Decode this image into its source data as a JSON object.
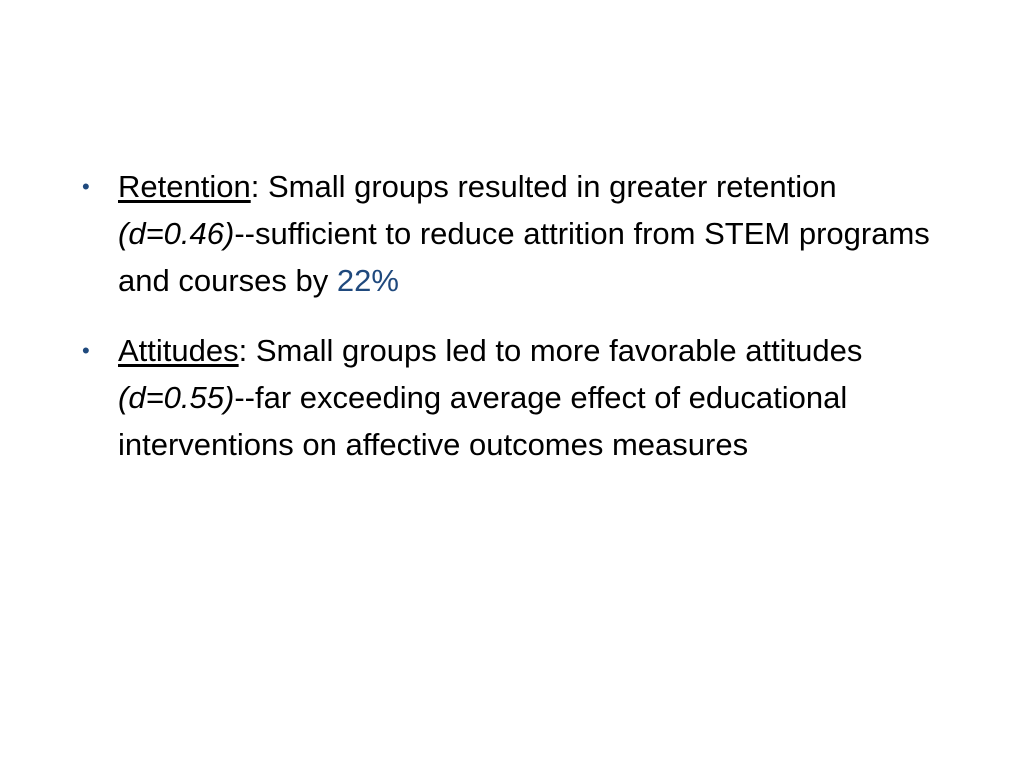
{
  "slide": {
    "accent_color": "#1f497d",
    "bullets": [
      {
        "bullet_glyph": "•",
        "term": "Retention",
        "colon": ":",
        "text_before_stat": " Small groups resulted in greater retention ",
        "stat": "(d=0.46)",
        "text_after_stat": "--sufficient to reduce attrition from STEM programs and courses by ",
        "highlight": "22%"
      },
      {
        "bullet_glyph": "•",
        "term": "Attitudes",
        "colon": ":",
        "text_before_stat": " Small groups led to more favorable attitudes ",
        "stat": "(d=0.55)",
        "text_after_stat": "--far exceeding average effect of educational interventions on affective outcomes measures"
      }
    ]
  }
}
